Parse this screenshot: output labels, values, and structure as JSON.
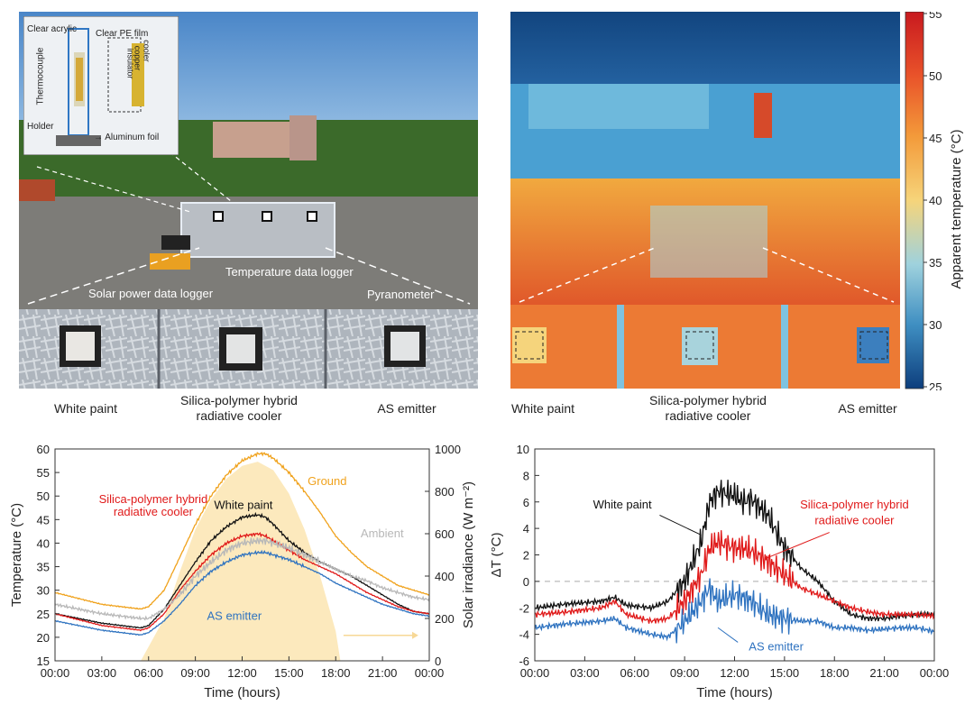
{
  "photo": {
    "inset": {
      "clear_acrylic": "Clear acrylic",
      "clear_pe_film": "Clear PE film",
      "thermocouple": "Thermocouple",
      "cooler": "cooler",
      "copper": "copper",
      "insulator": "insulator",
      "holder": "Holder",
      "aluminum_foil": "→ Aluminum foil"
    },
    "labels": {
      "temperature_logger": "Temperature data logger",
      "solar_logger": "Solar power data logger",
      "pyranometer": "Pyranometer"
    },
    "captions": [
      "White paint",
      "Silica-polymer hybrid\nradiative cooler",
      "AS emitter"
    ]
  },
  "thermal": {
    "colorbar": {
      "title": "Apparent temperature (°C)",
      "ticks": [
        "55",
        "50",
        "45",
        "40",
        "35",
        "30",
        "25"
      ],
      "colors": [
        "#c8191f",
        "#e9532a",
        "#f39a3a",
        "#f6d47a",
        "#9fd2dd",
        "#3f8fc2",
        "#0d3e7d"
      ]
    },
    "captions": [
      "White paint",
      "Silica-polymer hybrid\nradiative cooler",
      "AS emitter"
    ]
  },
  "chart_data": [
    {
      "type": "line",
      "xlabel": "Time (hours)",
      "ylabel": "Temperature (°C)",
      "y2label": "Solar irradiance (W m⁻²)",
      "x_ticks": [
        "00:00",
        "03:00",
        "06:00",
        "09:00",
        "12:00",
        "15:00",
        "18:00",
        "21:00",
        "00:00"
      ],
      "ylim": [
        15,
        60
      ],
      "y_ticks": [
        15,
        20,
        25,
        30,
        35,
        40,
        45,
        50,
        55,
        60
      ],
      "y2lim": [
        0,
        1000
      ],
      "y2_ticks": [
        0,
        200,
        400,
        600,
        800,
        1000
      ],
      "x": [
        0,
        3,
        5.5,
        6,
        7,
        8,
        9,
        10,
        11,
        12,
        13,
        13.5,
        14,
        15,
        16,
        17,
        18,
        19,
        20,
        21,
        22,
        23,
        24
      ],
      "series": [
        {
          "name": "Ground",
          "color": "#f0a21c",
          "values": [
            29.5,
            27,
            26,
            26.5,
            30,
            37,
            44,
            50,
            54.5,
            57.5,
            59,
            59,
            58,
            55,
            51,
            46.5,
            41.5,
            38,
            35,
            33,
            31,
            30,
            29
          ]
        },
        {
          "name": "White paint",
          "color": "#111111",
          "values": [
            25,
            23,
            22,
            22.5,
            26,
            31,
            36,
            40.5,
            43.5,
            45.5,
            46,
            45.5,
            44,
            40.5,
            38,
            36,
            34.5,
            33,
            31,
            29,
            27,
            25.5,
            25
          ]
        },
        {
          "name": "Silica-polymer hybrid radiative cooler",
          "color": "#e01a1a",
          "values": [
            25,
            22.5,
            21.5,
            22,
            25,
            30,
            34,
            37.5,
            40,
            41.5,
            42,
            41.5,
            40.5,
            38.5,
            36.5,
            35,
            33.5,
            31.5,
            29.5,
            28,
            26.5,
            25.5,
            25
          ]
        },
        {
          "name": "Ambient",
          "color": "#b8b8b8",
          "values": [
            27,
            25,
            24,
            24,
            26,
            29,
            33,
            36,
            38.5,
            40,
            40.5,
            40.5,
            40,
            39,
            37.5,
            36,
            34.5,
            33,
            32,
            30.5,
            29.5,
            28.5,
            28
          ]
        },
        {
          "name": "AS emitter",
          "color": "#2f73c0",
          "values": [
            23.5,
            21.5,
            20.5,
            21,
            23.5,
            27,
            31,
            34,
            36,
            37.5,
            38,
            38,
            37.5,
            36.5,
            35,
            33.5,
            31.5,
            30,
            28.5,
            27,
            26,
            25,
            24.5
          ]
        }
      ],
      "irradiance": {
        "color": "#fce9bd",
        "x": [
          5.5,
          7,
          8,
          9,
          10,
          11,
          12,
          13,
          14,
          15,
          16,
          17,
          18,
          18.3
        ],
        "values": [
          0,
          200,
          420,
          620,
          760,
          860,
          920,
          940,
          900,
          790,
          620,
          400,
          140,
          0
        ]
      },
      "labels": [
        "Ground",
        "White paint",
        "Silica-polymer hybrid",
        "radiative cooler",
        "Ambient",
        "AS emitter"
      ]
    },
    {
      "type": "line",
      "xlabel": "Time (hours)",
      "ylabel": "ΔT (°C)",
      "x_ticks": [
        "00:00",
        "03:00",
        "06:00",
        "09:00",
        "12:00",
        "15:00",
        "18:00",
        "21:00",
        "00:00"
      ],
      "ylim": [
        -6,
        10
      ],
      "y_ticks": [
        -6,
        -4,
        -2,
        0,
        2,
        4,
        6,
        8,
        10
      ],
      "x": [
        0,
        2,
        4,
        4.8,
        5.5,
        7,
        8,
        9,
        10,
        10.5,
        11,
        12,
        12.5,
        13,
        14,
        15,
        16,
        17,
        18,
        19,
        20,
        21,
        22,
        23,
        24
      ],
      "series": [
        {
          "name": "White paint",
          "color": "#111111",
          "values": [
            -2,
            -1.7,
            -1.5,
            -1.2,
            -1.8,
            -2,
            -1.5,
            0,
            3,
            6,
            6.8,
            6.5,
            6,
            6.2,
            5,
            2.5,
            1,
            0,
            -1.5,
            -2.5,
            -2.8,
            -2.8,
            -2.6,
            -2.5,
            -2.5
          ]
        },
        {
          "name": "Silica-polymer hybrid radiative cooler",
          "color": "#e01a1a",
          "values": [
            -2.5,
            -2.3,
            -2,
            -1.5,
            -2.5,
            -3,
            -2.8,
            -1.5,
            0.5,
            2.5,
            3,
            2.5,
            2.5,
            2.3,
            1.5,
            0.5,
            -0.5,
            -1,
            -1.5,
            -2,
            -2.3,
            -2.5,
            -2.5,
            -2.5,
            -2.6
          ]
        },
        {
          "name": "AS emitter",
          "color": "#2f73c0",
          "values": [
            -3.5,
            -3.2,
            -3,
            -2.8,
            -3.5,
            -4,
            -4.2,
            -3,
            -1.5,
            -0.5,
            -1.5,
            -1,
            -1.2,
            -1.5,
            -2.5,
            -2.8,
            -3,
            -3,
            -3.5,
            -3.5,
            -3.7,
            -3.6,
            -3.5,
            -3.5,
            -3.8
          ]
        }
      ],
      "labels": [
        "White paint",
        "Silica-polymer hybrid",
        "radiative cooler",
        "AS emitter"
      ]
    }
  ]
}
